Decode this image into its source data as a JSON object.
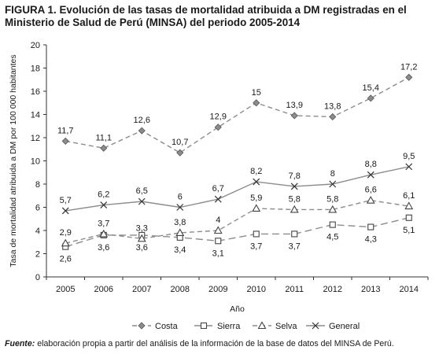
{
  "figure": {
    "label": "FIGURA 1.",
    "title": "Evolución de las tasas de mortalidad atribuida a DM registradas en el Ministerio de Salud de Perú (MINSA) del periodo 2005-2014"
  },
  "source": {
    "lead": "Fuente:",
    "text": "elaboración propia a partir del análisis de la información de la base de datos del MINSA de Perú."
  },
  "chart_data": {
    "type": "line",
    "title": "",
    "xlabel": "Año",
    "ylabel": "Tasa de mortalidad atribuida a DM por 100 000 habitantes",
    "categories": [
      "2005",
      "2006",
      "2007",
      "2008",
      "2009",
      "2010",
      "2011",
      "2012",
      "2013",
      "2014"
    ],
    "ylim": [
      0,
      20
    ],
    "yticks": [
      0,
      2,
      4,
      6,
      8,
      10,
      12,
      14,
      16,
      18,
      20
    ],
    "grid": false,
    "legend_position": "bottom",
    "series": [
      {
        "name": "Costa",
        "values": [
          11.7,
          11.1,
          12.6,
          10.7,
          12.9,
          15,
          13.9,
          13.8,
          15.4,
          17.2
        ],
        "labels": [
          "11,7",
          "11,1",
          "12,6",
          "10,7",
          "12,9",
          "15",
          "13,9",
          "13,8",
          "15,4",
          "17,2"
        ],
        "label_pos": "above",
        "marker": "diamond",
        "dash": "dashed",
        "color": "#8c8c8c"
      },
      {
        "name": "Sierra",
        "values": [
          2.6,
          3.6,
          3.6,
          3.4,
          3.1,
          3.7,
          3.7,
          4.5,
          4.3,
          5.1
        ],
        "labels": [
          "2,6",
          "3,6",
          "3,6",
          "3,4",
          "3,1",
          "3,7",
          "3,7",
          "4,5",
          "4,3",
          "5,1"
        ],
        "label_pos": "below",
        "marker": "square",
        "dash": "longdash",
        "color": "#8c8c8c"
      },
      {
        "name": "Selva",
        "values": [
          2.9,
          3.7,
          3.3,
          3.8,
          4,
          5.9,
          5.8,
          5.8,
          6.6,
          6.1
        ],
        "labels": [
          "2,9",
          "3,7",
          "3,3",
          "3,8",
          "4",
          "5,9",
          "5,8",
          "5,8",
          "6,6",
          "6,1"
        ],
        "label_pos": "above",
        "marker": "triangle",
        "dash": "dashed",
        "color": "#8c8c8c"
      },
      {
        "name": "General",
        "values": [
          5.7,
          6.2,
          6.5,
          6,
          6.7,
          8.2,
          7.8,
          8,
          8.8,
          9.5
        ],
        "labels": [
          "5,7",
          "6,2",
          "6,5",
          "6",
          "6,7",
          "8,2",
          "7,8",
          "8",
          "8,8",
          "9,5"
        ],
        "label_pos": "above",
        "marker": "x",
        "dash": "solid",
        "color": "#8c8c8c"
      }
    ]
  }
}
